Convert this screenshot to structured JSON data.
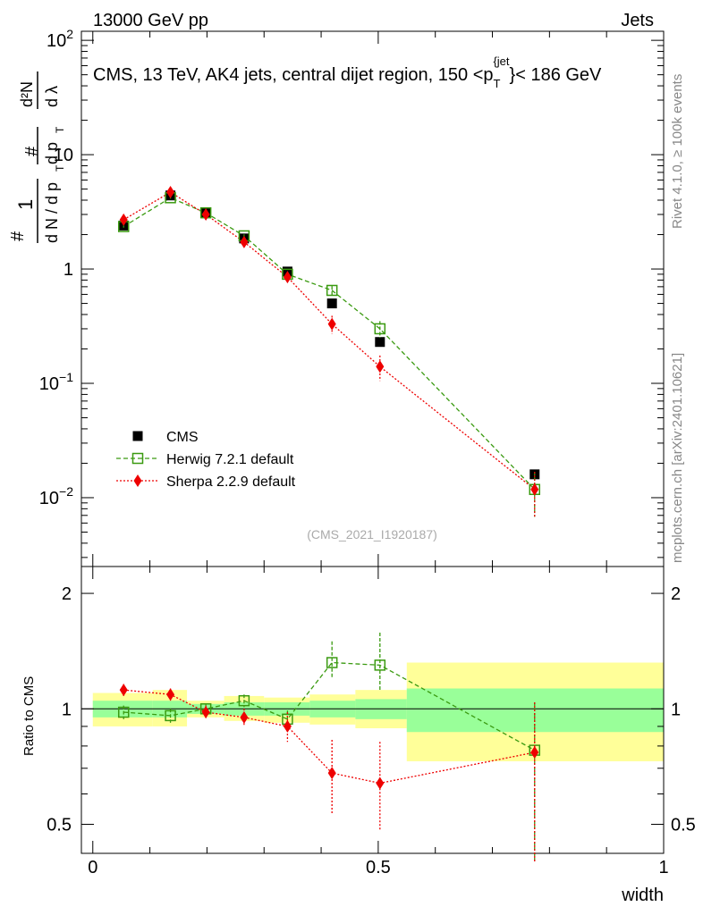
{
  "header": {
    "energy": "13000 GeV pp",
    "category": "Jets"
  },
  "side_text": {
    "rivet": "Rivet 4.1.0, ≥ 100k events",
    "site": "mcplots.cern.ch [arXiv:2401.10621]"
  },
  "chart_data": [
    {
      "type": "scatter",
      "title": "CMS, 13 TeV, AK4 jets, central dijet region, 150 <p_T^{jet}< 186 GeV",
      "title_parts": {
        "main": "CMS, 13 TeV, AK4 jets, central dijet region, 150 <p",
        "sub": "T",
        "sup": "{jet",
        "tail": "}< 186 GeV"
      },
      "ylabel": "1/dN/dp_T dN/dp_T dλ",
      "ylabel_parts": {
        "hash": "#",
        "one": "1",
        "d2n": "d²N",
        "dn": "d N / d p",
        "t": "T",
        "dp": "d p",
        "dlambda": "d λ"
      },
      "yscale": "log",
      "ylim": [
        0.0025,
        120
      ],
      "yticks": [
        {
          "value": 0.01,
          "label": "10",
          "exp": "−2"
        },
        {
          "value": 0.1,
          "label": "10",
          "exp": "−1"
        },
        {
          "value": 1,
          "label": "1",
          "exp": ""
        },
        {
          "value": 10,
          "label": "10",
          "exp": ""
        },
        {
          "value": 100,
          "label": "10",
          "exp": "2"
        }
      ],
      "xlim": [
        -0.02,
        1.0
      ],
      "watermark": "(CMS_2021_I1920187)",
      "legend_position": "lower-left",
      "series": [
        {
          "name": "CMS",
          "style": "data",
          "color": "#000000",
          "x": [
            0.054,
            0.136,
            0.198,
            0.265,
            0.341,
            0.419,
            0.503,
            0.774
          ],
          "y": [
            2.4,
            4.4,
            3.1,
            1.85,
            0.95,
            0.5,
            0.23,
            0.016
          ]
        },
        {
          "name": "Herwig 7.2.1 default",
          "style": "open-square-dashed",
          "color": "#3a9a10",
          "x": [
            0.054,
            0.136,
            0.198,
            0.265,
            0.341,
            0.419,
            0.503,
            0.774
          ],
          "y": [
            2.35,
            4.2,
            3.1,
            1.95,
            0.9,
            0.65,
            0.3,
            0.0118
          ],
          "yerr": [
            0.05,
            0.08,
            0.07,
            0.06,
            0.04,
            0.06,
            0.05,
            0.005
          ]
        },
        {
          "name": "Sherpa 2.2.9 default",
          "style": "diamond-dotted",
          "color": "#ee0000",
          "x": [
            0.054,
            0.136,
            0.198,
            0.265,
            0.341,
            0.419,
            0.503,
            0.774
          ],
          "y": [
            2.7,
            4.7,
            3.0,
            1.72,
            0.85,
            0.33,
            0.14,
            0.0118
          ],
          "yerr": [
            0.05,
            0.08,
            0.07,
            0.06,
            0.06,
            0.06,
            0.035,
            0.005
          ]
        }
      ]
    },
    {
      "type": "scatter",
      "ylabel": "Ratio to CMS",
      "xlabel": "width",
      "yscale": "log",
      "ylim": [
        0.42,
        2.35
      ],
      "yticks": [
        {
          "value": 0.5,
          "label": "0.5"
        },
        {
          "value": 1,
          "label": "1"
        },
        {
          "value": 2,
          "label": "2"
        }
      ],
      "xlim": [
        -0.02,
        1.0
      ],
      "xticks": [
        {
          "value": 0,
          "label": "0"
        },
        {
          "value": 0.5,
          "label": "0.5"
        },
        {
          "value": 1,
          "label": "1"
        }
      ],
      "bands": [
        {
          "x0": 0.0,
          "x1": 0.105,
          "inner": [
            0.95,
            1.05
          ],
          "outer": [
            0.9,
            1.1
          ]
        },
        {
          "x0": 0.105,
          "x1": 0.165,
          "inner": [
            0.95,
            1.05
          ],
          "outer": [
            0.9,
            1.12
          ]
        },
        {
          "x0": 0.165,
          "x1": 0.23,
          "inner": [
            0.97,
            1.03
          ],
          "outer": [
            0.95,
            1.05
          ]
        },
        {
          "x0": 0.23,
          "x1": 0.3,
          "inner": [
            0.96,
            1.04
          ],
          "outer": [
            0.93,
            1.08
          ]
        },
        {
          "x0": 0.3,
          "x1": 0.38,
          "inner": [
            0.96,
            1.04
          ],
          "outer": [
            0.92,
            1.07
          ]
        },
        {
          "x0": 0.38,
          "x1": 0.46,
          "inner": [
            0.95,
            1.05
          ],
          "outer": [
            0.91,
            1.09
          ]
        },
        {
          "x0": 0.46,
          "x1": 0.55,
          "inner": [
            0.94,
            1.06
          ],
          "outer": [
            0.89,
            1.12
          ]
        },
        {
          "x0": 0.55,
          "x1": 1.0,
          "inner": [
            0.87,
            1.13
          ],
          "outer": [
            0.73,
            1.32
          ]
        }
      ],
      "series": [
        {
          "name": "Herwig 7.2.1 default",
          "color": "#3a9a10",
          "x": [
            0.054,
            0.136,
            0.198,
            0.265,
            0.341,
            0.419,
            0.503,
            0.774
          ],
          "y": [
            0.98,
            0.96,
            1.0,
            1.05,
            0.94,
            1.32,
            1.3,
            0.78
          ],
          "yerr_lo": [
            0.04,
            0.04,
            0.03,
            0.04,
            0.05,
            0.12,
            0.18,
            0.38
          ],
          "yerr_hi": [
            0.04,
            0.04,
            0.03,
            0.04,
            0.05,
            0.18,
            0.28,
            0.26
          ]
        },
        {
          "name": "Sherpa 2.2.9 default",
          "color": "#ee0000",
          "x": [
            0.054,
            0.136,
            0.198,
            0.265,
            0.341,
            0.419,
            0.503,
            0.774
          ],
          "y": [
            1.12,
            1.09,
            0.98,
            0.95,
            0.9,
            0.68,
            0.64,
            0.77
          ],
          "yerr_lo": [
            0.04,
            0.04,
            0.04,
            0.05,
            0.08,
            0.15,
            0.16,
            0.37
          ],
          "yerr_hi": [
            0.04,
            0.04,
            0.04,
            0.05,
            0.08,
            0.15,
            0.18,
            0.27
          ]
        }
      ]
    }
  ]
}
